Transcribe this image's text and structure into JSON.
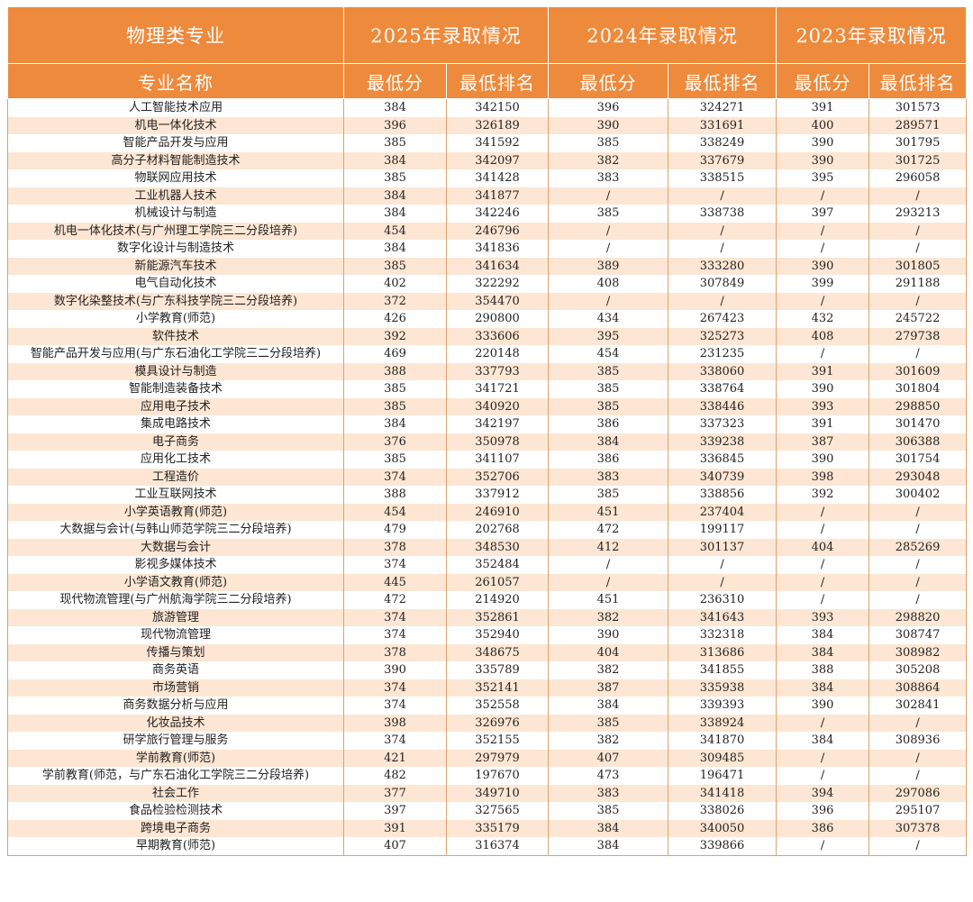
{
  "colors": {
    "accent": "#ee8a3c",
    "stripe": "#fde6d3"
  },
  "header": {
    "category": "物理类专业",
    "years": [
      "2025年录取情况",
      "2024年录取情况",
      "2023年录取情况"
    ],
    "major_col": "专业名称",
    "sub_cols": [
      "最低分",
      "最低排名",
      "最低分",
      "最低排名",
      "最低分",
      "最低排名"
    ]
  },
  "rows": [
    [
      "人工智能技术应用",
      "384",
      "342150",
      "396",
      "324271",
      "391",
      "301573"
    ],
    [
      "机电一体化技术",
      "396",
      "326189",
      "390",
      "331691",
      "400",
      "289571"
    ],
    [
      "智能产品开发与应用",
      "385",
      "341592",
      "385",
      "338249",
      "390",
      "301795"
    ],
    [
      "高分子材料智能制造技术",
      "384",
      "342097",
      "382",
      "337679",
      "390",
      "301725"
    ],
    [
      "物联网应用技术",
      "385",
      "341428",
      "383",
      "338515",
      "395",
      "296058"
    ],
    [
      "工业机器人技术",
      "384",
      "341877",
      "/",
      "/",
      "/",
      "/"
    ],
    [
      "机械设计与制造",
      "384",
      "342246",
      "385",
      "338738",
      "397",
      "293213"
    ],
    [
      "机电一体化技术(与广州理工学院三二分段培养)",
      "454",
      "246796",
      "/",
      "/",
      "/",
      "/"
    ],
    [
      "数字化设计与制造技术",
      "384",
      "341836",
      "/",
      "/",
      "/",
      "/"
    ],
    [
      "新能源汽车技术",
      "385",
      "341634",
      "389",
      "333280",
      "390",
      "301805"
    ],
    [
      "电气自动化技术",
      "402",
      "322292",
      "408",
      "307849",
      "399",
      "291188"
    ],
    [
      "数字化染整技术(与广东科技学院三二分段培养)",
      "372",
      "354470",
      "/",
      "/",
      "/",
      "/"
    ],
    [
      "小学教育(师范)",
      "426",
      "290800",
      "434",
      "267423",
      "432",
      "245722"
    ],
    [
      "软件技术",
      "392",
      "333606",
      "395",
      "325273",
      "408",
      "279738"
    ],
    [
      "智能产品开发与应用(与广东石油化工学院三二分段培养)",
      "469",
      "220148",
      "454",
      "231235",
      "/",
      "/"
    ],
    [
      "模具设计与制造",
      "388",
      "337793",
      "385",
      "338060",
      "391",
      "301609"
    ],
    [
      "智能制造装备技术",
      "385",
      "341721",
      "385",
      "338764",
      "390",
      "301804"
    ],
    [
      "应用电子技术",
      "385",
      "340920",
      "385",
      "338446",
      "393",
      "298850"
    ],
    [
      "集成电路技术",
      "384",
      "342197",
      "386",
      "337323",
      "391",
      "301470"
    ],
    [
      "电子商务",
      "376",
      "350978",
      "384",
      "339238",
      "387",
      "306388"
    ],
    [
      "应用化工技术",
      "385",
      "341107",
      "386",
      "336845",
      "390",
      "301754"
    ],
    [
      "工程造价",
      "374",
      "352706",
      "383",
      "340739",
      "398",
      "293048"
    ],
    [
      "工业互联网技术",
      "388",
      "337912",
      "385",
      "338856",
      "392",
      "300402"
    ],
    [
      "小学英语教育(师范)",
      "454",
      "246910",
      "451",
      "237404",
      "/",
      "/"
    ],
    [
      "大数据与会计(与韩山师范学院三二分段培养)",
      "479",
      "202768",
      "472",
      "199117",
      "/",
      "/"
    ],
    [
      "大数据与会计",
      "378",
      "348530",
      "412",
      "301137",
      "404",
      "285269"
    ],
    [
      "影视多媒体技术",
      "374",
      "352484",
      "/",
      "/",
      "/",
      "/"
    ],
    [
      "小学语文教育(师范)",
      "445",
      "261057",
      "/",
      "/",
      "/",
      "/"
    ],
    [
      "现代物流管理(与广州航海学院三二分段培养)",
      "472",
      "214920",
      "451",
      "236310",
      "/",
      "/"
    ],
    [
      "旅游管理",
      "374",
      "352861",
      "382",
      "341643",
      "393",
      "298820"
    ],
    [
      "现代物流管理",
      "374",
      "352940",
      "390",
      "332318",
      "384",
      "308747"
    ],
    [
      "传播与策划",
      "378",
      "348675",
      "404",
      "313686",
      "384",
      "308982"
    ],
    [
      "商务英语",
      "390",
      "335789",
      "382",
      "341855",
      "388",
      "305208"
    ],
    [
      "市场营销",
      "374",
      "352141",
      "387",
      "335938",
      "384",
      "308864"
    ],
    [
      "商务数据分析与应用",
      "374",
      "352558",
      "384",
      "339393",
      "390",
      "302841"
    ],
    [
      "化妆品技术",
      "398",
      "326976",
      "385",
      "338924",
      "/",
      "/"
    ],
    [
      "研学旅行管理与服务",
      "374",
      "352155",
      "382",
      "341870",
      "384",
      "308936"
    ],
    [
      "学前教育(师范)",
      "421",
      "297979",
      "407",
      "309485",
      "/",
      "/"
    ],
    [
      "学前教育(师范，与广东石油化工学院三二分段培养)",
      "482",
      "197670",
      "473",
      "196471",
      "/",
      "/"
    ],
    [
      "社会工作",
      "377",
      "349710",
      "383",
      "341418",
      "394",
      "297086"
    ],
    [
      "食品检验检测技术",
      "397",
      "327565",
      "385",
      "338026",
      "396",
      "295107"
    ],
    [
      "跨境电子商务",
      "391",
      "335179",
      "384",
      "340050",
      "386",
      "307378"
    ],
    [
      "早期教育(师范)",
      "407",
      "316374",
      "384",
      "339866",
      "/",
      "/"
    ]
  ]
}
